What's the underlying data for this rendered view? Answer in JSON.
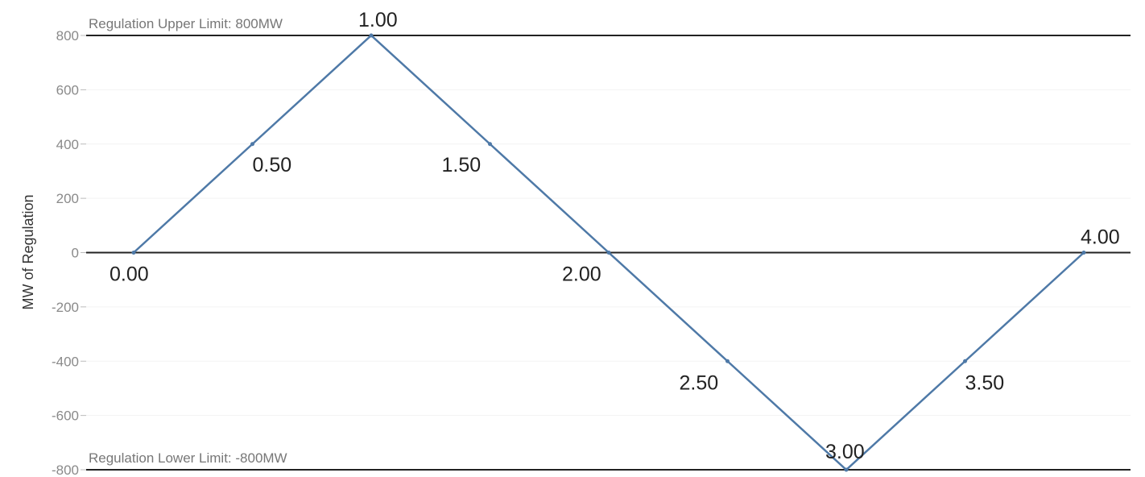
{
  "chart_data": {
    "type": "line",
    "ylabel": "MW of Regulation",
    "ylim": [
      -800,
      800
    ],
    "yticks": [
      800,
      600,
      400,
      200,
      0,
      -200,
      -400,
      -600,
      -800
    ],
    "grid": true,
    "series": [
      {
        "color": "#4e79a7",
        "points": [
          {
            "label": "0.00",
            "y": 0
          },
          {
            "label": "0.50",
            "y": 400
          },
          {
            "label": "1.00",
            "y": 800
          },
          {
            "label": "1.50",
            "y": 400
          },
          {
            "label": "2.00",
            "y": 0
          },
          {
            "label": "2.50",
            "y": -400
          },
          {
            "label": "3.00",
            "y": -800
          },
          {
            "label": "3.50",
            "y": -400
          },
          {
            "label": "4.00",
            "y": 0
          }
        ]
      }
    ],
    "reference_lines": [
      {
        "y": 800,
        "label": "Regulation Upper Limit: 800MW"
      },
      {
        "y": 0,
        "label": ""
      },
      {
        "y": -800,
        "label": "Regulation Lower Limit: -800MW"
      }
    ]
  }
}
